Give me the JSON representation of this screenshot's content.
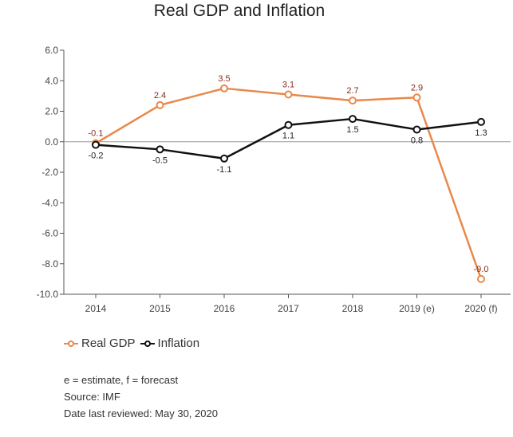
{
  "colors": {
    "real_gdp": "#e8894a",
    "inflation": "#111111",
    "gdp_label": "#8b2a1c",
    "axis": "#555555",
    "zero_line": "#9a9a9a"
  },
  "chart_data": {
    "type": "line",
    "title": "Real GDP and Inflation",
    "categories": [
      "2014",
      "2015",
      "2016",
      "2017",
      "2018",
      "2019 (e)",
      "2020 (f)"
    ],
    "ylim": [
      -10.0,
      6.0
    ],
    "yticks": [
      "6.0",
      "4.0",
      "2.0",
      "0.0",
      "-2.0",
      "-4.0",
      "-6.0",
      "-8.0",
      "-10.0"
    ],
    "grid": false,
    "legend": "bottom-left",
    "series": [
      {
        "name": "Real GDP",
        "values": [
          -0.1,
          2.4,
          3.5,
          3.1,
          2.7,
          2.9,
          -9.0
        ],
        "labels": [
          "-0.1",
          "2.4",
          "3.5",
          "3.1",
          "2.7",
          "2.9",
          "-9.0"
        ]
      },
      {
        "name": "Inflation",
        "values": [
          -0.2,
          -0.5,
          -1.1,
          1.1,
          1.5,
          0.8,
          1.3
        ],
        "labels": [
          "-0.2",
          "-0.5",
          "-1.1",
          "1.1",
          "1.5",
          "0.8",
          "1.3"
        ]
      }
    ]
  },
  "notes": {
    "estimate": "e = estimate, f = forecast",
    "source": "Source: IMF",
    "reviewed": "Date last reviewed: May 30, 2020"
  }
}
